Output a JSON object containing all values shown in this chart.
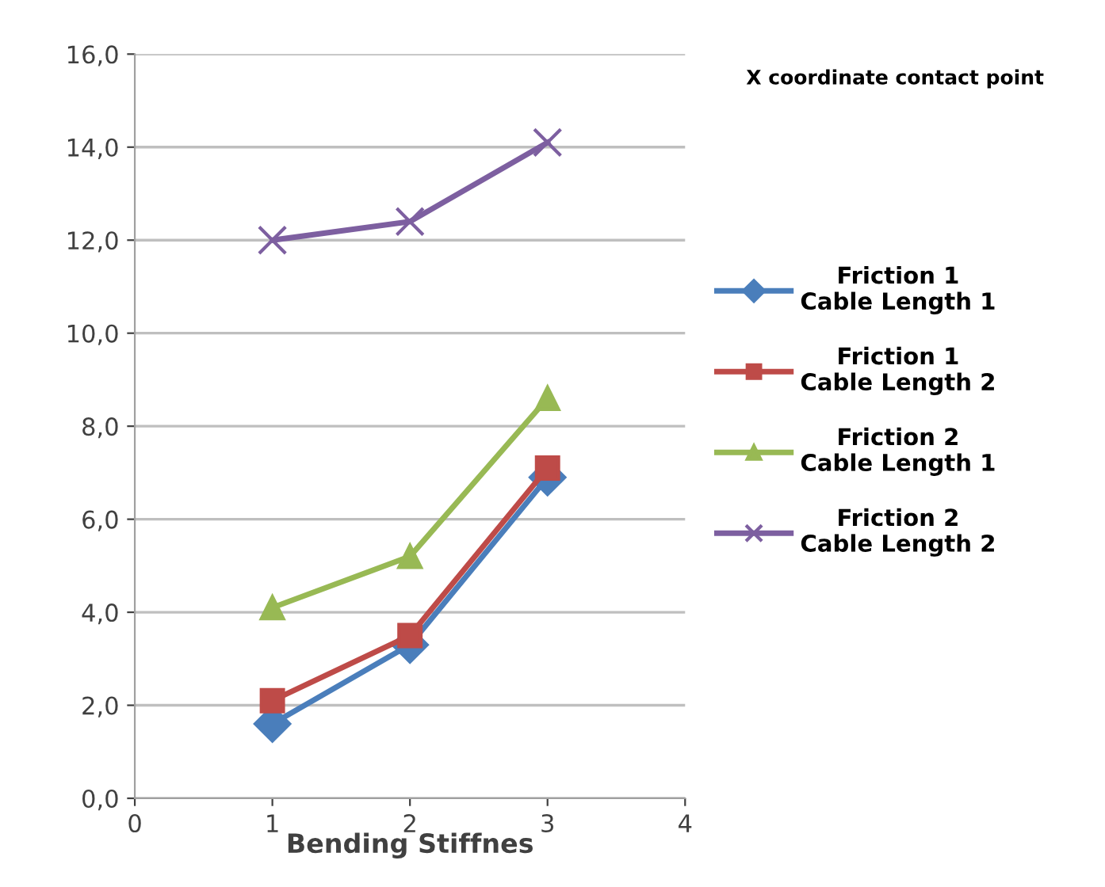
{
  "chart_data": {
    "type": "line",
    "title": "X coordinate contact point",
    "xlabel": "Bending Stiffnes",
    "x": [
      1,
      2,
      3
    ],
    "xlim": [
      0,
      4
    ],
    "xticks": [
      0,
      1,
      2,
      3,
      4
    ],
    "ylim": [
      0,
      16
    ],
    "yticks": [
      {
        "value": 0,
        "label": "0,0"
      },
      {
        "value": 2,
        "label": "2,0"
      },
      {
        "value": 4,
        "label": "4,0"
      },
      {
        "value": 6,
        "label": "6,0"
      },
      {
        "value": 8,
        "label": "8,0"
      },
      {
        "value": 10,
        "label": "10,0"
      },
      {
        "value": 12,
        "label": "12,0"
      },
      {
        "value": 14,
        "label": "14,0"
      },
      {
        "value": 16,
        "label": "16,0"
      }
    ],
    "grid": "y",
    "legend": "right",
    "series": [
      {
        "name": "Friction 1\nCable Length 1",
        "color": "#4a7ebb",
        "marker": "diamond",
        "values": [
          1.6,
          3.3,
          6.9
        ]
      },
      {
        "name": "Friction 1\nCable Length 2",
        "color": "#be4b48",
        "marker": "square",
        "values": [
          2.1,
          3.5,
          7.1
        ]
      },
      {
        "name": "Friction 2\nCable Length 1",
        "color": "#98b954",
        "marker": "triangle",
        "values": [
          4.1,
          5.2,
          8.6
        ]
      },
      {
        "name": "Friction 2\nCable Length 2",
        "color": "#7d5fa0",
        "marker": "cross",
        "values": [
          12.0,
          12.4,
          14.1
        ]
      }
    ]
  }
}
